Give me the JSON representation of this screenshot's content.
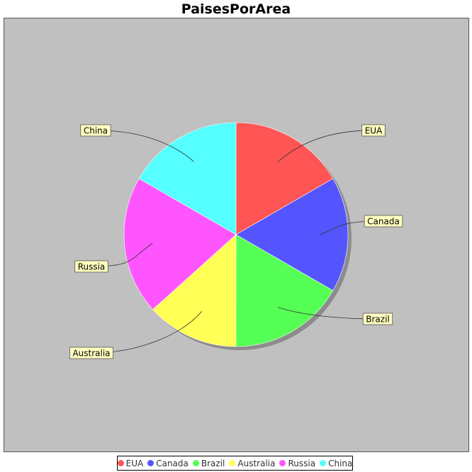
{
  "chart_data": {
    "type": "pie",
    "title": "PaisesPorArea",
    "categories": [
      "EUA",
      "Canada",
      "Brazil",
      "Australia",
      "Russia",
      "China"
    ],
    "values": [
      16.67,
      16.67,
      16.67,
      13.33,
      20.0,
      16.67
    ],
    "colors": [
      "#ff5555",
      "#5555ff",
      "#55ff55",
      "#ffff55",
      "#ff55ff",
      "#55ffff"
    ],
    "legend_position": "bottom",
    "plot_background": "#c0c0c0"
  },
  "legend": {
    "items": [
      {
        "label": "EUA",
        "color": "#ff5555"
      },
      {
        "label": "Canada",
        "color": "#5555ff"
      },
      {
        "label": "Brazil",
        "color": "#55ff55"
      },
      {
        "label": "Australia",
        "color": "#ffff55"
      },
      {
        "label": "Russia",
        "color": "#ff55ff"
      },
      {
        "label": "China",
        "color": "#55ffff"
      }
    ]
  }
}
